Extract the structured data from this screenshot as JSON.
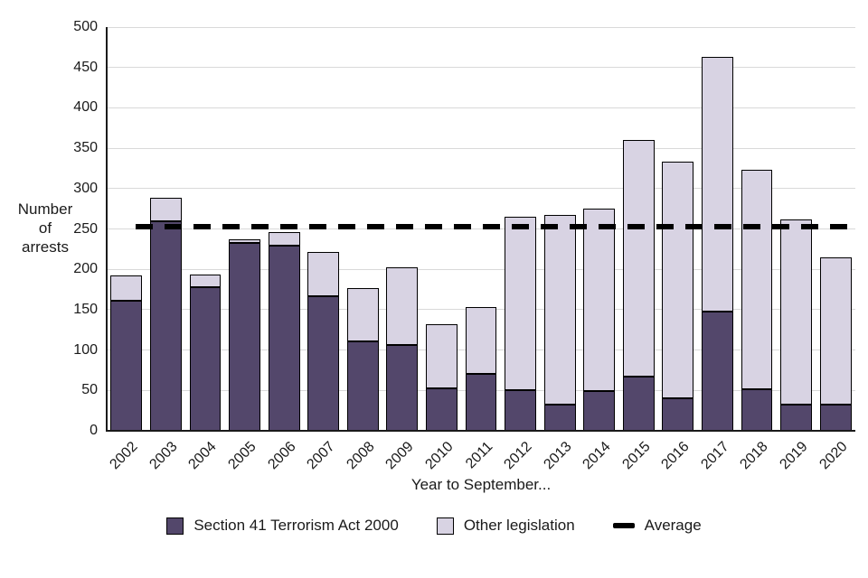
{
  "chart_data": {
    "type": "bar",
    "stacked": true,
    "title": "",
    "xlabel": "Year to September...",
    "ylabel": "Number\nof\narrests",
    "categories": [
      "2002",
      "2003",
      "2004",
      "2005",
      "2006",
      "2007",
      "2008",
      "2009",
      "2010",
      "2011",
      "2012",
      "2013",
      "2014",
      "2015",
      "2016",
      "2017",
      "2018",
      "2019",
      "2020"
    ],
    "series": [
      {
        "name": "Section 41 Terrorism Act 2000",
        "color": "#53476b",
        "values": [
          161,
          260,
          178,
          233,
          229,
          167,
          111,
          106,
          53,
          71,
          50,
          32,
          49,
          67,
          40,
          148,
          51,
          32,
          33
        ]
      },
      {
        "name": "Other legislation",
        "color": "#d8d3e3",
        "values": [
          31,
          29,
          15,
          4,
          17,
          55,
          66,
          97,
          79,
          82,
          215,
          235,
          226,
          293,
          293,
          315,
          272,
          230,
          182
        ]
      }
    ],
    "average": {
      "label": "Average",
      "value": 253,
      "color": "#000000"
    },
    "ylim": [
      0,
      500
    ],
    "ytick_step": 50,
    "grid": true,
    "legend_position": "bottom",
    "axis_color": "#1a1a1a",
    "grid_color": "#d9d9d9"
  }
}
